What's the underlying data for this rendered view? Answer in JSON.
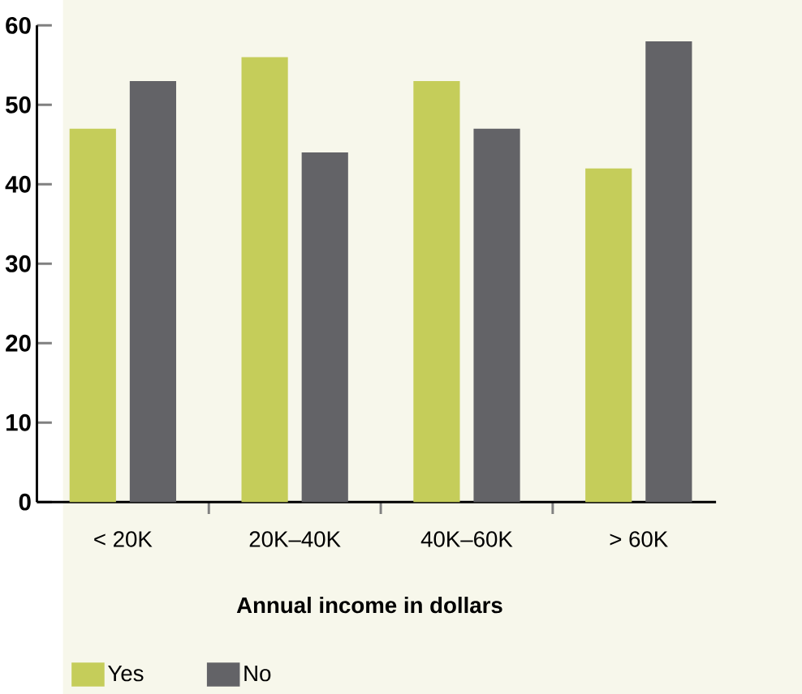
{
  "chart_data": {
    "type": "bar",
    "xlabel": "Annual income in dollars",
    "categories": [
      "< 20K",
      "20K–40K",
      "40K–60K",
      "> 60K"
    ],
    "series": [
      {
        "name": "Yes",
        "color": "#c5cd5a",
        "values": [
          47,
          56,
          53,
          42
        ]
      },
      {
        "name": "No",
        "color": "#636367",
        "values": [
          53,
          44,
          47,
          58
        ]
      }
    ],
    "ylim": [
      0,
      60
    ],
    "yticks": [
      0,
      10,
      20,
      30,
      40,
      50,
      60
    ],
    "grid": false,
    "legend": "bottom"
  }
}
